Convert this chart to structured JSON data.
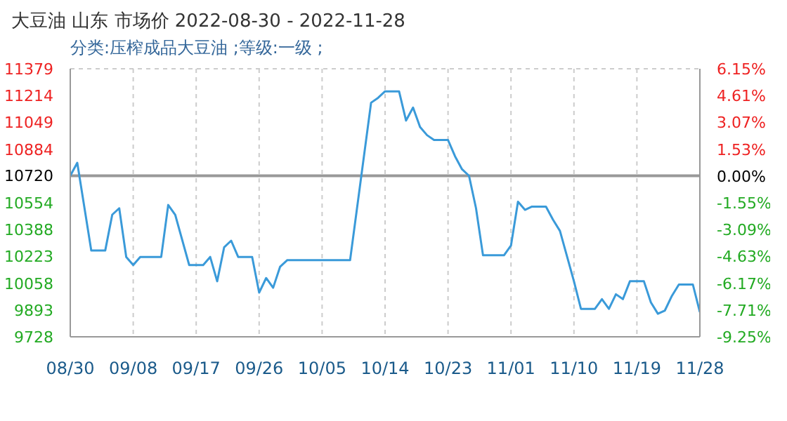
{
  "chart_data": {
    "type": "line",
    "title": "大豆油 山东 市场价 2022-08-30 - 2022-11-28",
    "subtitle": "分类:压榨成品大豆油 ;等级:一级 ;",
    "x": [
      "2022-08-30",
      "2022-08-31",
      "2022-09-02",
      "2022-09-04",
      "2022-09-05",
      "2022-09-06",
      "2022-09-07",
      "2022-09-08",
      "2022-09-09",
      "2022-09-12",
      "2022-09-13",
      "2022-09-14",
      "2022-09-16",
      "2022-09-18",
      "2022-09-19",
      "2022-09-20",
      "2022-09-21",
      "2022-09-22",
      "2022-09-23",
      "2022-09-25",
      "2022-09-26",
      "2022-09-27",
      "2022-09-28",
      "2022-09-29",
      "2022-09-30",
      "2022-10-09",
      "2022-10-12",
      "2022-10-13",
      "2022-10-14",
      "2022-10-16",
      "2022-10-17",
      "2022-10-18",
      "2022-10-19",
      "2022-10-20",
      "2022-10-21",
      "2022-10-23",
      "2022-10-24",
      "2022-10-25",
      "2022-10-26",
      "2022-10-27",
      "2022-10-28",
      "2022-10-31",
      "2022-11-01",
      "2022-11-02",
      "2022-11-03",
      "2022-11-04",
      "2022-11-06",
      "2022-11-07",
      "2022-11-08",
      "2022-11-10",
      "2022-11-11",
      "2022-11-13",
      "2022-11-14",
      "2022-11-15",
      "2022-11-16",
      "2022-11-17",
      "2022-11-18",
      "2022-11-20",
      "2022-11-21",
      "2022-11-22",
      "2022-11-23",
      "2022-11-24",
      "2022-11-25",
      "2022-11-27",
      "2022-11-28"
    ],
    "series": [
      {
        "color": "#3a9ad9",
        "values": [
          10720,
          10800,
          10260,
          10260,
          10480,
          10520,
          10220,
          10170,
          10220,
          10220,
          10540,
          10480,
          10170,
          10170,
          10220,
          10070,
          10280,
          10320,
          10220,
          10220,
          10000,
          10090,
          10030,
          10160,
          10200,
          10200,
          11170,
          11200,
          11240,
          11240,
          11060,
          11140,
          11020,
          10970,
          10940,
          10940,
          10840,
          10760,
          10720,
          10520,
          10230,
          10230,
          10290,
          10560,
          10510,
          10530,
          10530,
          10450,
          10380,
          10070,
          9900,
          9900,
          9960,
          9900,
          9990,
          9960,
          10070,
          10070,
          9940,
          9870,
          9890,
          9980,
          10050,
          10050,
          9880
        ]
      }
    ],
    "xlim": [
      "2022-08-30",
      "2022-11-28"
    ],
    "xticks": [
      {
        "value": "2022-08-30",
        "label": "08/30"
      },
      {
        "value": "2022-09-08",
        "label": "09/08"
      },
      {
        "value": "2022-09-17",
        "label": "09/17"
      },
      {
        "value": "2022-09-26",
        "label": "09/26"
      },
      {
        "value": "2022-10-05",
        "label": "10/05"
      },
      {
        "value": "2022-10-14",
        "label": "10/14"
      },
      {
        "value": "2022-10-23",
        "label": "10/23"
      },
      {
        "value": "2022-11-01",
        "label": "11/01"
      },
      {
        "value": "2022-11-10",
        "label": "11/10"
      },
      {
        "value": "2022-11-19",
        "label": "11/19"
      },
      {
        "value": "2022-11-28",
        "label": "11/28"
      }
    ],
    "ylim": [
      9728,
      11379
    ],
    "yticks": [
      9728,
      9893,
      10058,
      10223,
      10388,
      10554,
      10720,
      10884,
      11049,
      11214,
      11379
    ],
    "y2lim": [
      -9.25,
      6.15
    ],
    "y2ticks": [
      {
        "value": -9.25,
        "label": "-9.25%"
      },
      {
        "value": -7.71,
        "label": "-7.71%"
      },
      {
        "value": -6.17,
        "label": "-6.17%"
      },
      {
        "value": -4.63,
        "label": "-4.63%"
      },
      {
        "value": -3.09,
        "label": "-3.09%"
      },
      {
        "value": -1.55,
        "label": "-1.55%"
      },
      {
        "value": 0,
        "label": "0.00%"
      },
      {
        "value": 1.53,
        "label": "1.53%"
      },
      {
        "value": 3.07,
        "label": "3.07%"
      },
      {
        "value": 4.61,
        "label": "4.61%"
      },
      {
        "value": 6.15,
        "label": "6.15%"
      }
    ],
    "ref_lines": [
      {
        "axis": "y",
        "value": 10720,
        "color": "#999999"
      }
    ],
    "grid": true,
    "marker": "none",
    "line_style": "solid"
  }
}
